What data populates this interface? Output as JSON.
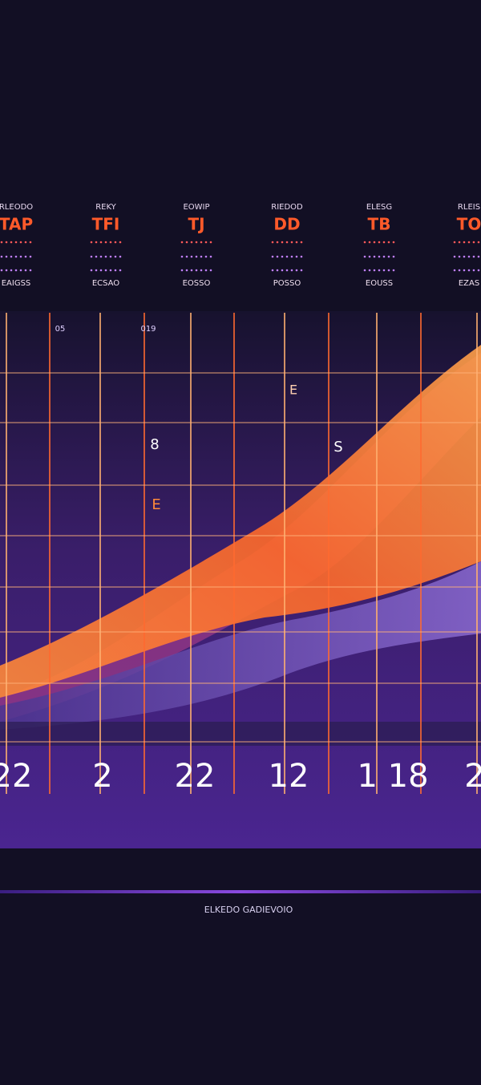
{
  "header": {
    "columns": [
      {
        "label": "RLEODO",
        "value": "TAP",
        "detail": "EAIGSS"
      },
      {
        "label": "REKY",
        "value": "TFI",
        "detail": "ECSAO"
      },
      {
        "label": "EOWIP",
        "value": "TJ",
        "detail": "EOSSO"
      },
      {
        "label": "RIEDOD",
        "value": "DD",
        "detail": "POSSO"
      },
      {
        "label": "ELESG",
        "value": "TB",
        "detail": "EOUSS"
      },
      {
        "label": "RLEIS",
        "value": "TO",
        "detail": "EZAS"
      }
    ]
  },
  "panel": {
    "labels": [
      "05",
      "019",
      "8",
      "S",
      "E",
      "E"
    ]
  },
  "axis": {
    "labels": [
      "22",
      "2",
      "22",
      "12",
      "1 18",
      "2"
    ]
  },
  "footer": {
    "caption": "ELKEDO GADIEVOIO"
  }
}
